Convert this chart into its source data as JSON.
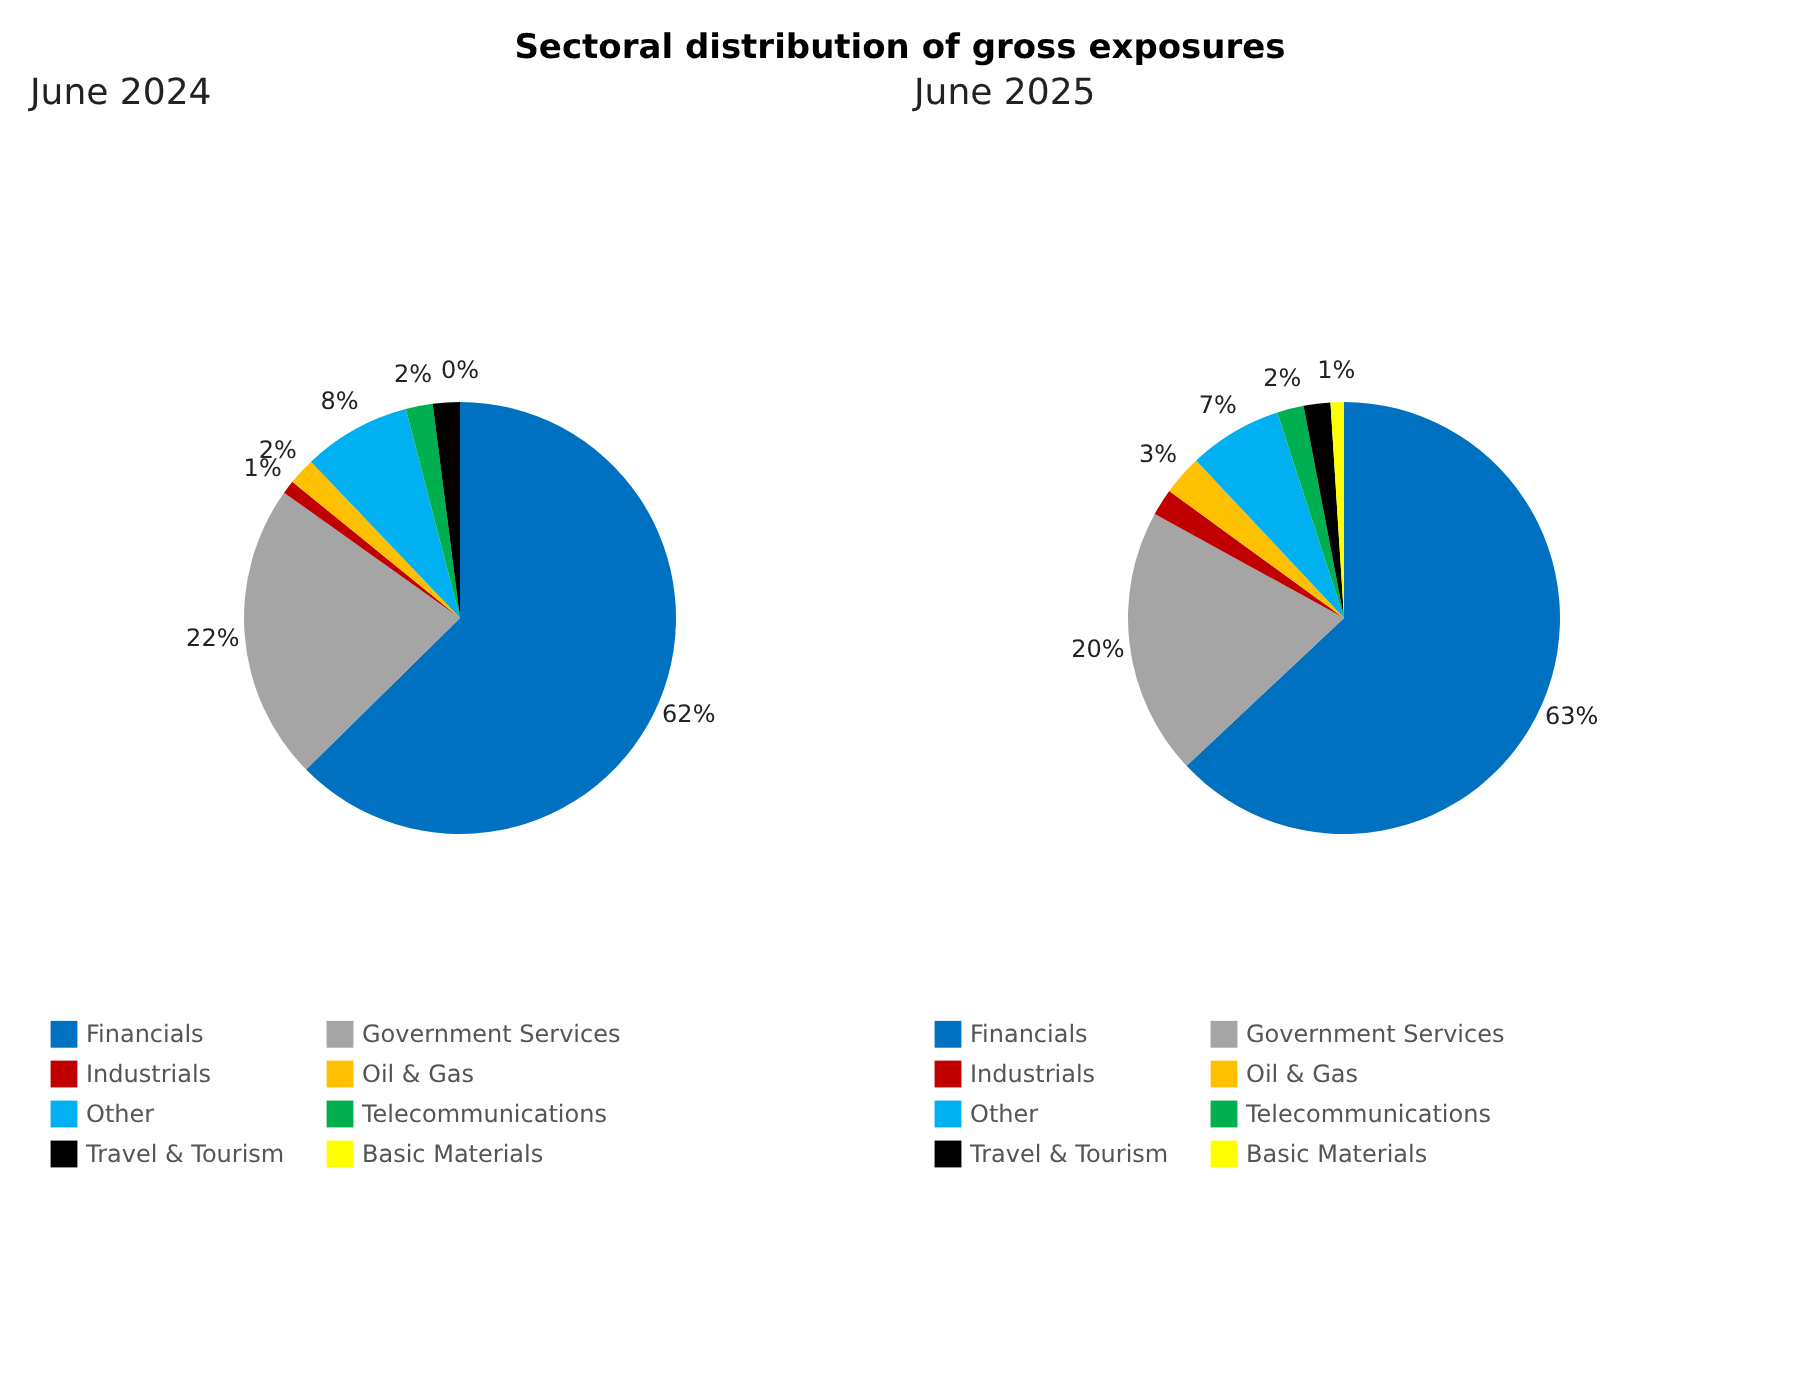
{
  "chart_data": [
    {
      "type": "pie",
      "title": "Sectoral distribution of gross exposures",
      "subtitle": "June 2024",
      "categories": [
        "Financials",
        "Government Services",
        "Industrials",
        "Oil & Gas",
        "Other",
        "Telecommunications",
        "Travel & Tourism",
        "Basic Materials"
      ],
      "values": [
        62,
        22,
        1,
        2,
        8,
        2,
        2,
        0
      ],
      "value_labels": [
        "62%",
        "22%",
        "1%",
        "2%",
        "8%",
        "2%",
        null,
        "0%"
      ],
      "colors": [
        "#0070c0",
        "#a5a5a5",
        "#c00000",
        "#ffc000",
        "#00b0f0",
        "#00b050",
        "#000000",
        "#ffff00"
      ],
      "legend": "bottom left"
    },
    {
      "type": "pie",
      "subtitle": "June 2025",
      "categories": [
        "Financials",
        "Government Services",
        "Industrials",
        "Oil & Gas",
        "Other",
        "Telecommunications",
        "Travel & Tourism",
        "Basic Materials"
      ],
      "values": [
        63,
        20,
        2,
        3,
        7,
        2,
        2,
        1
      ],
      "value_labels": [
        "63%",
        "20%",
        null,
        "3%",
        "7%",
        "2%",
        null,
        "1%"
      ],
      "colors": [
        "#0070c0",
        "#a5a5a5",
        "#c00000",
        "#ffc000",
        "#00b0f0",
        "#00b050",
        "#000000",
        "#ffff00"
      ],
      "legend": "bottom left"
    }
  ]
}
